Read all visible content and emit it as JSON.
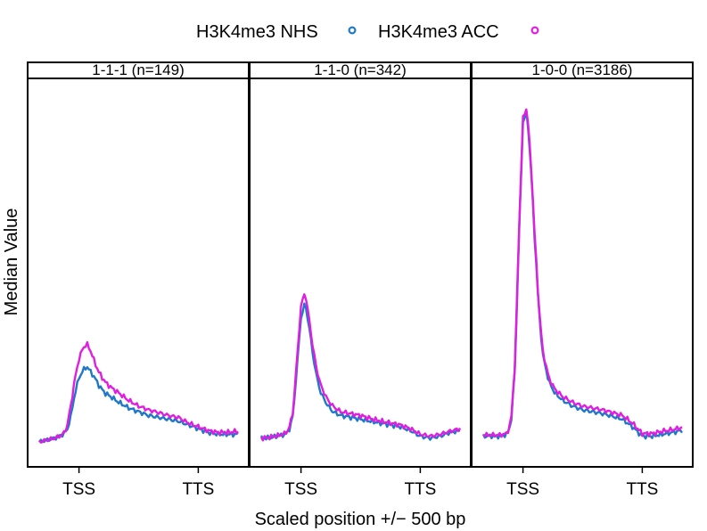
{
  "chart_data": {
    "type": "line",
    "title": "",
    "xlabel": "Scaled position +/− 500 bp",
    "ylabel": "Median Value",
    "x_tick_labels": [
      "TSS",
      "TTS"
    ],
    "x_tick_positions": [
      0.2,
      0.8
    ],
    "xlim": [
      0,
      1
    ],
    "ylim": [
      0,
      1
    ],
    "grid": false,
    "legend_position": "top",
    "legend": [
      {
        "name": "H3K4me3 NHS",
        "color": "#1f78c8"
      },
      {
        "name": "H3K4me3 ACC",
        "color": "#e01ee0"
      }
    ],
    "x": [
      0.0,
      0.04,
      0.08,
      0.12,
      0.14,
      0.16,
      0.18,
      0.2,
      0.22,
      0.24,
      0.26,
      0.28,
      0.3,
      0.33,
      0.36,
      0.4,
      0.45,
      0.5,
      0.55,
      0.6,
      0.65,
      0.7,
      0.75,
      0.8,
      0.85,
      0.9,
      0.95,
      1.0
    ],
    "panels": [
      {
        "label": "1-1-1 (n=149)",
        "series": [
          {
            "name": "H3K4me3 NHS",
            "values": [
              0.05,
              0.055,
              0.06,
              0.07,
              0.08,
              0.12,
              0.18,
              0.22,
              0.24,
              0.25,
              0.235,
              0.22,
              0.2,
              0.18,
              0.17,
              0.155,
              0.14,
              0.13,
              0.12,
              0.115,
              0.11,
              0.105,
              0.095,
              0.085,
              0.075,
              0.07,
              0.07,
              0.07
            ]
          },
          {
            "name": "H3K4me3 ACC",
            "values": [
              0.05,
              0.055,
              0.06,
              0.07,
              0.09,
              0.15,
              0.22,
              0.27,
              0.3,
              0.31,
              0.29,
              0.26,
              0.235,
              0.21,
              0.195,
              0.18,
              0.16,
              0.145,
              0.135,
              0.128,
              0.12,
              0.115,
              0.1,
              0.09,
              0.08,
              0.075,
              0.075,
              0.078
            ]
          }
        ]
      },
      {
        "label": "1-1-0 (n=342)",
        "series": [
          {
            "name": "H3K4me3 NHS",
            "values": [
              0.06,
              0.06,
              0.065,
              0.07,
              0.08,
              0.12,
              0.25,
              0.38,
              0.42,
              0.36,
              0.28,
              0.22,
              0.18,
              0.15,
              0.13,
              0.12,
              0.115,
              0.11,
              0.105,
              0.1,
              0.095,
              0.09,
              0.08,
              0.065,
              0.06,
              0.065,
              0.075,
              0.08
            ]
          },
          {
            "name": "H3K4me3 ACC",
            "values": [
              0.06,
              0.062,
              0.066,
              0.072,
              0.085,
              0.13,
              0.27,
              0.41,
              0.45,
              0.38,
              0.3,
              0.24,
              0.2,
              0.165,
              0.145,
              0.13,
              0.125,
              0.12,
              0.112,
              0.105,
              0.1,
              0.095,
              0.085,
              0.07,
              0.065,
              0.07,
              0.078,
              0.085
            ]
          }
        ]
      },
      {
        "label": "1-0-0 (n=3186)",
        "series": [
          {
            "name": "H3K4me3 NHS",
            "values": [
              0.065,
              0.065,
              0.065,
              0.07,
              0.1,
              0.25,
              0.6,
              0.9,
              0.93,
              0.78,
              0.58,
              0.4,
              0.28,
              0.21,
              0.18,
              0.16,
              0.145,
              0.135,
              0.13,
              0.125,
              0.118,
              0.11,
              0.09,
              0.065,
              0.065,
              0.07,
              0.075,
              0.08
            ]
          },
          {
            "name": "H3K4me3 ACC",
            "values": [
              0.068,
              0.068,
              0.068,
              0.072,
              0.105,
              0.26,
              0.61,
              0.91,
              0.94,
              0.79,
              0.59,
              0.41,
              0.29,
              0.22,
              0.19,
              0.17,
              0.155,
              0.145,
              0.14,
              0.135,
              0.128,
              0.12,
              0.1,
              0.072,
              0.072,
              0.078,
              0.082,
              0.088
            ]
          }
        ]
      }
    ]
  }
}
